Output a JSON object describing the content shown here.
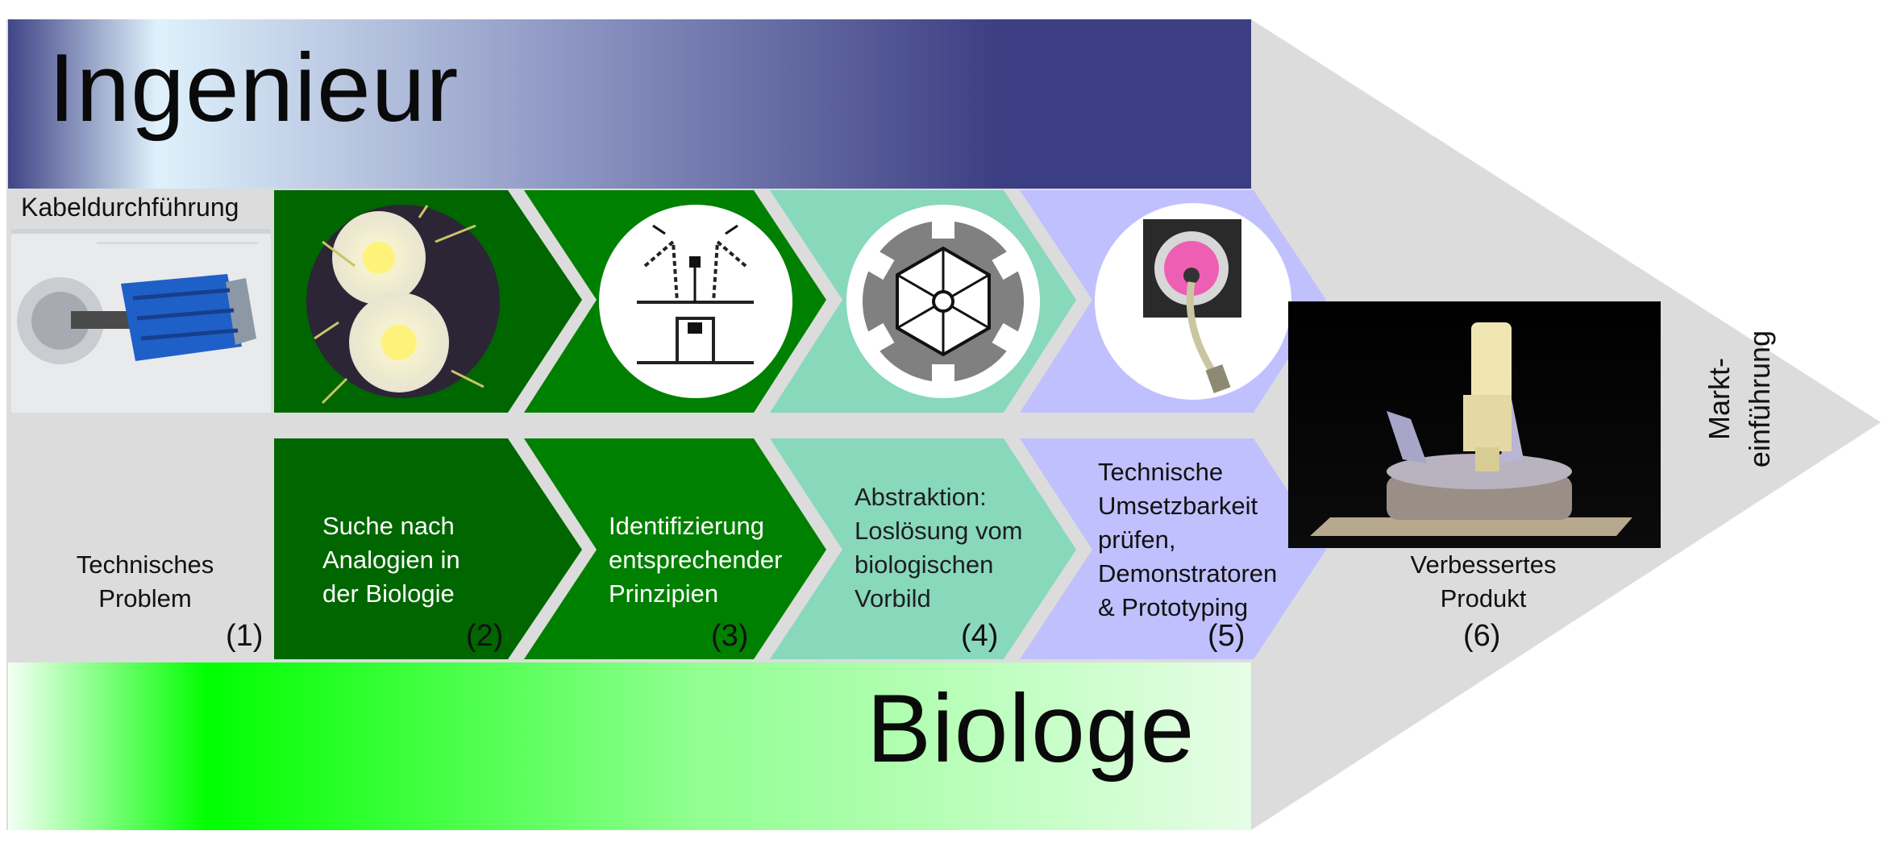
{
  "header": {
    "title": "Ingenieur"
  },
  "footer": {
    "title": "Biologe"
  },
  "top_left_label": "Kabeldurchführung",
  "steps": [
    {
      "number": "(1)",
      "lines": [
        "Technisches",
        "Problem"
      ]
    },
    {
      "number": "(2)",
      "lines": [
        "Suche nach",
        "Analogien in",
        "der Biologie"
      ]
    },
    {
      "number": "(3)",
      "lines": [
        "Identifizierung",
        "entsprechender",
        "Prinzipien"
      ]
    },
    {
      "number": "(4)",
      "lines": [
        "Abstraktion:",
        "Loslösung vom",
        "biologischen",
        "Vorbild"
      ]
    },
    {
      "number": "(5)",
      "lines": [
        "Technische",
        "Umsetzbarkeit",
        "prüfen,",
        "Demonstratoren",
        "& Prototyping"
      ]
    },
    {
      "number": "(6)",
      "lines": [
        "Verbessertes",
        "Produkt"
      ]
    }
  ],
  "tip_label": [
    "Markt-",
    "einführung"
  ],
  "colors": {
    "header_dark": "#3b3e82",
    "header_light": "#dff1fb",
    "footer_bright": "#00ff00",
    "footer_light": "#e6fde6",
    "step_green": "#006600",
    "step_green_mid": "#008000",
    "step_teal": "#88d8bc",
    "step_lavender": "#c0c0ff",
    "background_arrow": "#dcdcdc"
  },
  "icons": [
    "cable-gland-photo",
    "cactus-flower-photo",
    "mechanism-sketch-icon",
    "gear-abstraction-icon",
    "prototype-photo",
    "product-photo"
  ]
}
